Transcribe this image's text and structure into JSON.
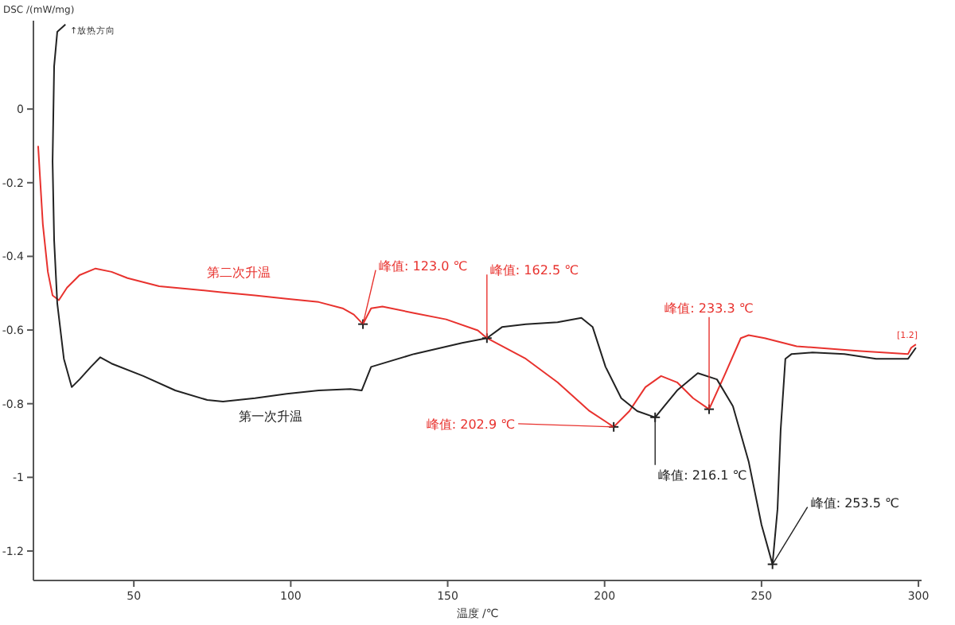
{
  "chart_data": {
    "type": "line",
    "xlabel": "温度 /℃",
    "ylabel": "DSC /(mW/mg)",
    "xlim": [
      18,
      301
    ],
    "ylim": [
      -1.28,
      0.24
    ],
    "xticks": [
      50,
      100,
      150,
      200,
      250,
      300
    ],
    "yticks": [
      0,
      -0.2,
      -0.4,
      -0.6,
      -0.8,
      -1.0,
      -1.2
    ],
    "grid": false,
    "marker": "none",
    "line_style": "solid",
    "series": [
      {
        "name": "第二次升温",
        "color": "#e8322e",
        "x": [
          19.5,
          21.0,
          22.6,
          24.1,
          26.1,
          28.7,
          32.7,
          37.8,
          42.9,
          48.0,
          58.1,
          68.3,
          78.4,
          88.6,
          98.7,
          108.9,
          116.5,
          120.1,
          123.0,
          125.6,
          129.2,
          139.3,
          149.5,
          159.6,
          162.5,
          174.9,
          185.0,
          195.2,
          202.9,
          207.9,
          213.0,
          218.0,
          223.1,
          228.2,
          233.3,
          238.3,
          243.4,
          245.9,
          251.0,
          261.2,
          281.5,
          296.7,
          297.7,
          299.2
        ],
        "values": [
          -0.1,
          -0.313,
          -0.442,
          -0.506,
          -0.519,
          -0.485,
          -0.451,
          -0.433,
          -0.442,
          -0.459,
          -0.481,
          -0.489,
          -0.498,
          -0.506,
          -0.515,
          -0.524,
          -0.541,
          -0.558,
          -0.584,
          -0.541,
          -0.536,
          -0.554,
          -0.571,
          -0.601,
          -0.622,
          -0.678,
          -0.742,
          -0.82,
          -0.863,
          -0.82,
          -0.755,
          -0.725,
          -0.742,
          -0.785,
          -0.815,
          -0.721,
          -0.622,
          -0.614,
          -0.622,
          -0.644,
          -0.657,
          -0.665,
          -0.648,
          -0.639
        ]
      },
      {
        "name": "第一次升温",
        "color": "#222222",
        "x": [
          28.2,
          25.6,
          24.6,
          24.1,
          24.6,
          25.6,
          27.7,
          30.2,
          32.7,
          36.3,
          39.3,
          42.9,
          53.0,
          63.2,
          73.4,
          78.4,
          88.6,
          98.7,
          108.9,
          119.0,
          122.6,
          125.6,
          139.3,
          154.6,
          162.5,
          167.3,
          174.9,
          185.0,
          192.6,
          196.2,
          200.3,
          205.3,
          210.4,
          216.1,
          223.1,
          229.7,
          235.8,
          240.9,
          245.9,
          250.0,
          253.5,
          255.1,
          256.1,
          257.6,
          259.6,
          266.2,
          276.4,
          286.5,
          296.7,
          299.2
        ],
        "values": [
          0.23,
          0.21,
          0.116,
          -0.142,
          -0.356,
          -0.528,
          -0.678,
          -0.755,
          -0.734,
          -0.7,
          -0.674,
          -0.691,
          -0.725,
          -0.764,
          -0.79,
          -0.794,
          -0.785,
          -0.773,
          -0.764,
          -0.76,
          -0.764,
          -0.7,
          -0.665,
          -0.635,
          -0.622,
          -0.592,
          -0.584,
          -0.579,
          -0.567,
          -0.592,
          -0.7,
          -0.785,
          -0.82,
          -0.837,
          -0.764,
          -0.717,
          -0.734,
          -0.807,
          -0.957,
          -1.129,
          -1.236,
          -1.086,
          -0.871,
          -0.678,
          -0.665,
          -0.661,
          -0.665,
          -0.678,
          -0.678,
          -0.648
        ]
      }
    ],
    "annotations": [
      "↑放热方向",
      {
        "text": "峰值: 123.0 ℃",
        "x": 123.0,
        "y": -0.584
      },
      {
        "text": "峰值: 162.5 ℃",
        "x": 162.5,
        "y": -0.622
      },
      {
        "text": "峰值: 202.9 ℃",
        "x": 202.9,
        "y": -0.863
      },
      {
        "text": "峰值: 233.3 ℃",
        "x": 233.3,
        "y": -0.815
      },
      {
        "text": "峰值: 216.1 ℃",
        "x": 216.1,
        "y": -0.837
      },
      {
        "text": "峰值: 253.5 ℃",
        "x": 253.5,
        "y": -1.236
      },
      {
        "text": "[1.2]",
        "x": 299.2,
        "y": -0.639
      }
    ]
  }
}
